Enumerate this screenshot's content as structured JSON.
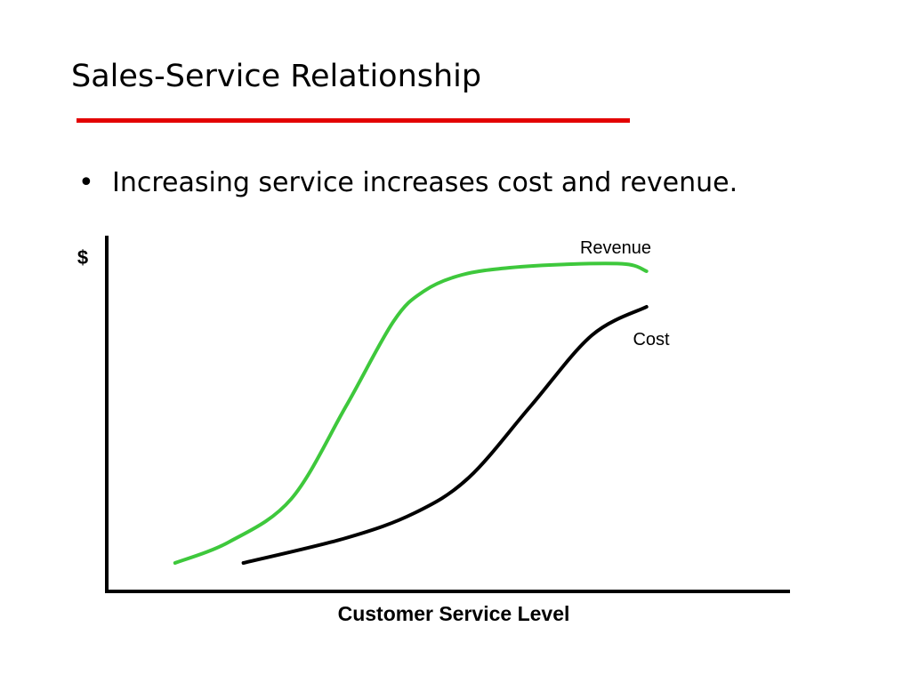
{
  "slide": {
    "title": "Sales-Service Relationship",
    "title_rule_color": "#e30000",
    "bullets": [
      "Increasing service increases cost and revenue."
    ],
    "bullet_glyph": "•"
  },
  "chart_data": {
    "type": "line",
    "title": "",
    "xlabel": "Customer Service Level",
    "ylabel": "$",
    "xlim": [
      0,
      100
    ],
    "ylim": [
      0,
      100
    ],
    "grid": false,
    "legend": "none",
    "axis_ticks": false,
    "series": [
      {
        "name": "Revenue",
        "color": "#3ec83c",
        "x": [
          10,
          18,
          27,
          35,
          42,
          46.5,
          52,
          59,
          68,
          76,
          79
        ],
        "y": [
          8,
          14,
          26,
          52,
          76,
          84.5,
          89,
          91,
          92,
          92,
          90
        ]
      },
      {
        "name": "Cost",
        "color": "#000000",
        "x": [
          20,
          35,
          45,
          53,
          62,
          71,
          79
        ],
        "y": [
          8,
          15,
          22,
          32,
          52,
          72,
          80
        ]
      }
    ]
  }
}
